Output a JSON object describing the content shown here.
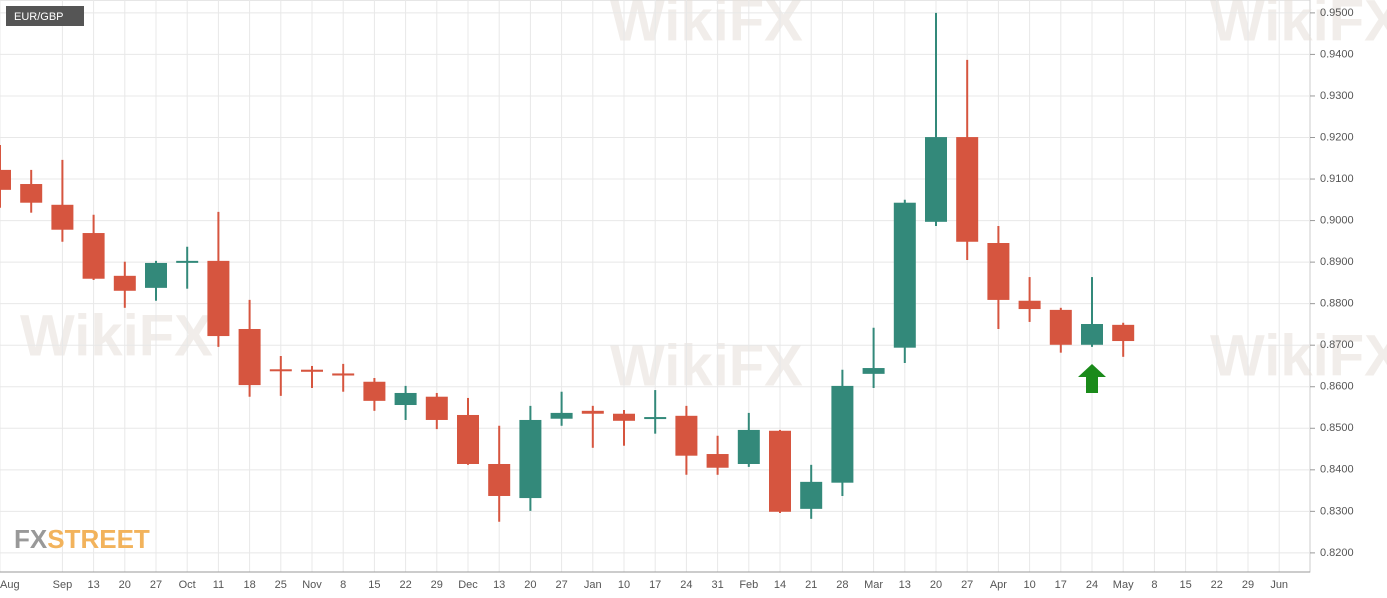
{
  "chart_data": {
    "type": "candlestick",
    "title": "EUR/GBP",
    "logo": [
      "FX",
      "STREET"
    ],
    "watermark": "WikiFX",
    "categories": [
      "Aug",
      null,
      "Sep",
      "13",
      "20",
      "27",
      "Oct",
      "11",
      "18",
      "25",
      "Nov",
      "8",
      "15",
      "22",
      "29",
      "Dec",
      "13",
      "20",
      "27",
      "Jan",
      "10",
      "17",
      "24",
      "31",
      "Feb",
      "14",
      "21",
      "28",
      "Mar",
      "13",
      "20",
      "27",
      "Apr",
      "10",
      "17",
      "24",
      "May",
      "8",
      "15",
      "22",
      "29",
      "Jun"
    ],
    "up_color": "#33897a",
    "down_color": "#d6553f",
    "open": [
      0.9122,
      0.9088,
      0.9038,
      0.897,
      0.8867,
      0.8838,
      0.89,
      0.8903,
      0.8739,
      0.8642,
      0.8641,
      0.8632,
      0.8612,
      0.8556,
      0.8576,
      0.8532,
      0.8414,
      0.8332,
      0.8523,
      0.8542,
      0.8535,
      0.8525,
      0.853,
      0.8438,
      0.8414,
      0.8494,
      0.8306,
      0.8369,
      0.8631,
      0.8694,
      0.8997,
      0.9201,
      0.8946,
      0.8807,
      0.8785,
      0.8701,
      0.8749,
      null,
      null,
      null,
      null,
      null
    ],
    "high": [
      0.9182,
      0.9122,
      0.9146,
      0.9014,
      0.8901,
      0.8903,
      0.8937,
      0.9021,
      0.8809,
      0.8674,
      0.865,
      0.8655,
      0.8621,
      0.8602,
      0.8585,
      0.8573,
      0.8506,
      0.8554,
      0.8588,
      0.8554,
      0.8544,
      0.8592,
      0.8554,
      0.8482,
      0.8537,
      0.8496,
      0.8412,
      0.8641,
      0.8742,
      0.905,
      0.95,
      0.9387,
      0.8987,
      0.8864,
      0.879,
      0.8864,
      0.8754,
      null,
      null,
      null,
      null,
      null
    ],
    "low": [
      0.9031,
      0.9019,
      0.8949,
      0.8857,
      0.879,
      0.8807,
      0.8836,
      0.8696,
      0.8576,
      0.8578,
      0.8597,
      0.8588,
      0.8542,
      0.852,
      0.8498,
      0.8412,
      0.8275,
      0.8301,
      0.8506,
      0.8453,
      0.8458,
      0.8487,
      0.8388,
      0.8388,
      0.8407,
      0.8296,
      0.8282,
      0.8337,
      0.8597,
      0.8657,
      0.8987,
      0.8905,
      0.8739,
      0.8756,
      0.8682,
      0.8696,
      0.8672,
      null,
      null,
      null,
      null,
      null
    ],
    "close": [
      0.9074,
      0.9043,
      0.8978,
      0.886,
      0.8831,
      0.8898,
      0.8903,
      0.8722,
      0.8604,
      0.864,
      0.8636,
      0.8627,
      0.8566,
      0.8585,
      0.852,
      0.8414,
      0.8337,
      0.852,
      0.8537,
      0.8535,
      0.8518,
      0.8527,
      0.8434,
      0.8405,
      0.8496,
      0.8299,
      0.8371,
      0.8602,
      0.8645,
      0.9043,
      0.9201,
      0.8949,
      0.8809,
      0.8787,
      0.8701,
      0.8751,
      0.871,
      null,
      null,
      null,
      null,
      null
    ],
    "ylim": [
      0.8154,
      0.9531
    ],
    "yticks": [
      {
        "value": 0.82,
        "label": "0.8200"
      },
      {
        "value": 0.83,
        "label": "0.8300"
      },
      {
        "value": 0.84,
        "label": "0.8400"
      },
      {
        "value": 0.85,
        "label": "0.8500"
      },
      {
        "value": 0.86,
        "label": "0.8600"
      },
      {
        "value": 0.87,
        "label": "0.8700"
      },
      {
        "value": 0.88,
        "label": "0.8800"
      },
      {
        "value": 0.89,
        "label": "0.8900"
      },
      {
        "value": 0.9,
        "label": "0.9000"
      },
      {
        "value": 0.91,
        "label": "0.9100"
      },
      {
        "value": 0.92,
        "label": "0.9200"
      },
      {
        "value": 0.93,
        "label": "0.9300"
      },
      {
        "value": 0.94,
        "label": "0.9400"
      },
      {
        "value": 0.95,
        "label": "0.9500"
      }
    ],
    "grid": true
  }
}
